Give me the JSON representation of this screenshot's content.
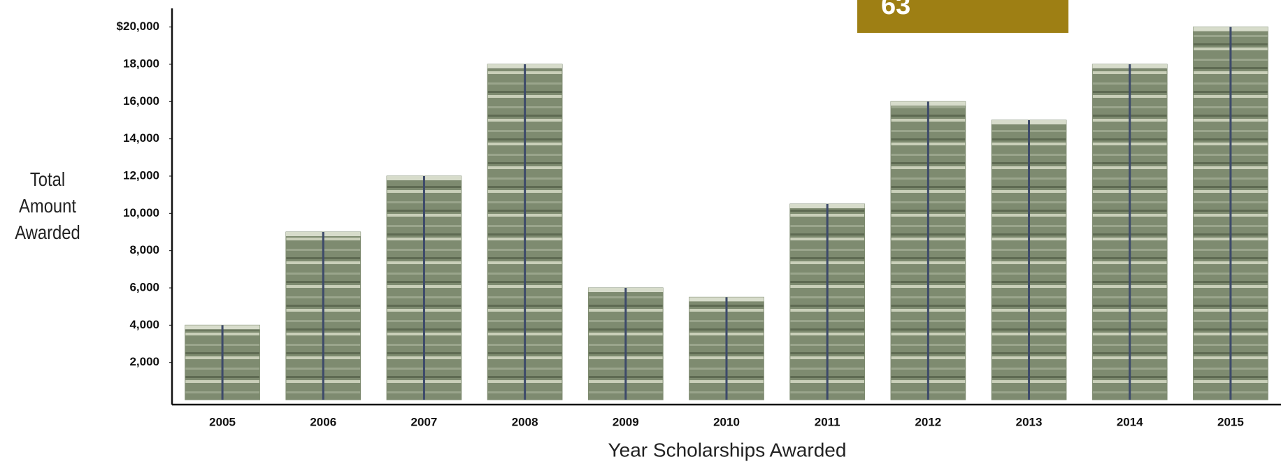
{
  "chart_data": {
    "type": "bar",
    "badge": "63",
    "ylabel": "Total Amount Awarded",
    "xlabel": "Year Scholarships Awarded",
    "categories": [
      "2005",
      "2006",
      "2007",
      "2008",
      "2009",
      "2010",
      "2011",
      "2012",
      "2013",
      "2014",
      "2015"
    ],
    "values": [
      4000,
      9000,
      12000,
      18000,
      6000,
      5500,
      10500,
      16000,
      15000,
      18000,
      20000
    ],
    "color": "#7e8b70",
    "ylim": [
      0,
      21000
    ],
    "yticks": [
      {
        "value": 2000,
        "label": "2,000"
      },
      {
        "value": 4000,
        "label": "4,000"
      },
      {
        "value": 6000,
        "label": "6,000"
      },
      {
        "value": 8000,
        "label": "8,000"
      },
      {
        "value": 10000,
        "label": "10,000"
      },
      {
        "value": 12000,
        "label": "12,000"
      },
      {
        "value": 14000,
        "label": "14,000"
      },
      {
        "value": 16000,
        "label": "16,000"
      },
      {
        "value": 18000,
        "label": "18,000"
      },
      {
        "value": 20000,
        "label": "$20,000"
      }
    ],
    "grid": false
  }
}
